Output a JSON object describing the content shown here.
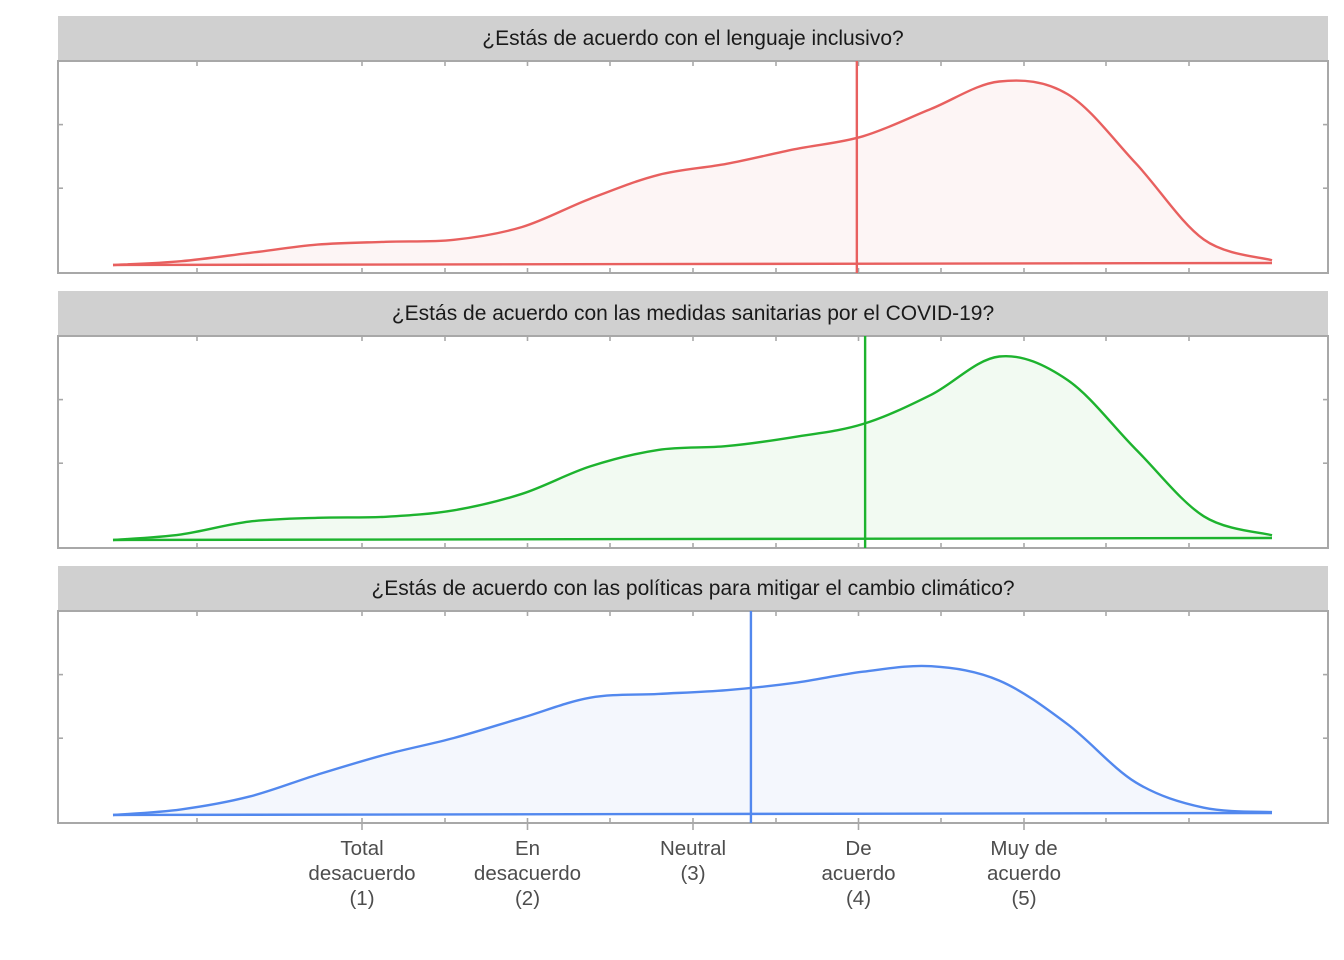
{
  "chart_data": {
    "type": "area",
    "chart_kind": "faceted density plot with mean lines",
    "x_axis": {
      "range": [
        0.0,
        7.0
      ],
      "tick_values": [
        1,
        2,
        3,
        4,
        5
      ],
      "tick_labels": [
        [
          "Total",
          "desacuerdo",
          "(1)"
        ],
        [
          "En",
          "desacuerdo",
          "(2)"
        ],
        [
          "Neutral",
          "(3)"
        ],
        [
          "De",
          "acuerdo",
          "(4)"
        ],
        [
          "Muy de",
          "acuerdo",
          "(5)"
        ]
      ]
    },
    "y_axis": {
      "tick_labels_shown": false,
      "range": [
        0,
        1
      ]
    },
    "grid": false,
    "legend": "none",
    "panels": [
      {
        "title": "¿Estás de acuerdo con el lenguaje inclusivo?",
        "color": "#e8605f",
        "fill": "#fdf5f5",
        "mean": 3.99,
        "density_x": [
          -1.5,
          -1.0,
          -0.5,
          0.0,
          0.5,
          1.0,
          1.5,
          2.0,
          2.5,
          3.0,
          3.5,
          4.0,
          4.5,
          5.0,
          5.5,
          6.0,
          6.5,
          7.0
        ],
        "density_y": [
          0.0,
          0.02,
          0.065,
          0.11,
          0.125,
          0.135,
          0.205,
          0.36,
          0.49,
          0.55,
          0.63,
          0.7,
          0.85,
          1.0,
          0.93,
          0.55,
          0.13,
          0.015
        ]
      },
      {
        "title": "¿Estás de acuerdo con las medidas sanitarias por el COVID-19?",
        "color": "#1db32e",
        "fill": "#f2faf2",
        "mean": 4.04,
        "density_x": [
          -1.5,
          -1.0,
          -0.5,
          0.0,
          0.5,
          1.0,
          1.5,
          2.0,
          2.5,
          3.0,
          3.5,
          4.0,
          4.5,
          5.0,
          5.5,
          6.0,
          6.5,
          7.0
        ],
        "density_y": [
          0.0,
          0.03,
          0.1,
          0.12,
          0.125,
          0.16,
          0.25,
          0.4,
          0.49,
          0.51,
          0.56,
          0.63,
          0.79,
          1.0,
          0.87,
          0.49,
          0.12,
          0.015
        ]
      },
      {
        "title": "¿Estás de acuerdo con las políticas para mitigar el cambio climático?",
        "color": "#5288ee",
        "fill": "#f4f7fd",
        "mean": 3.35,
        "density_x": [
          -1.5,
          -1.0,
          -0.5,
          0.0,
          0.5,
          1.0,
          1.5,
          2.0,
          2.5,
          3.0,
          3.5,
          4.0,
          4.5,
          5.0,
          5.5,
          6.0,
          6.5,
          7.0
        ],
        "density_y": [
          0.0,
          0.03,
          0.1,
          0.22,
          0.33,
          0.42,
          0.53,
          0.64,
          0.66,
          0.68,
          0.72,
          0.78,
          0.81,
          0.73,
          0.49,
          0.17,
          0.03,
          0.005
        ]
      }
    ]
  }
}
